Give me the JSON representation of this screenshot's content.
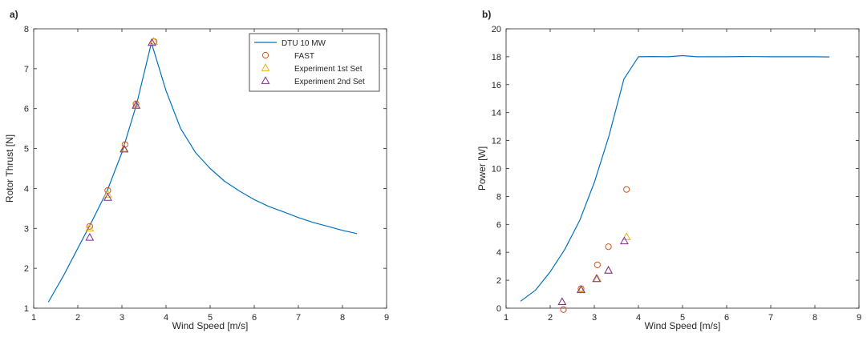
{
  "chart_data": [
    {
      "type": "line",
      "panel_label": "a)",
      "xlabel": "Wind Speed [m/s]",
      "ylabel": "Rotor Thrust [N]",
      "xlim": [
        1,
        9
      ],
      "ylim": [
        1,
        8
      ],
      "xticks": [
        1,
        2,
        3,
        4,
        5,
        6,
        7,
        8,
        9
      ],
      "yticks": [
        1,
        2,
        3,
        4,
        5,
        6,
        7,
        8
      ],
      "grid": false,
      "legend": "top-right",
      "series": [
        {
          "name": "DTU 10 MW",
          "kind": "line",
          "color": "#0072bd",
          "x": [
            1.33,
            1.67,
            2.0,
            2.33,
            2.67,
            3.0,
            3.33,
            3.67,
            4.0,
            4.33,
            4.67,
            5.0,
            5.33,
            5.67,
            6.0,
            6.33,
            6.67,
            7.0,
            7.33,
            7.67,
            8.0,
            8.33
          ],
          "y": [
            1.15,
            1.8,
            2.5,
            3.2,
            3.95,
            4.9,
            6.1,
            7.65,
            6.45,
            5.5,
            4.9,
            4.5,
            4.18,
            3.93,
            3.72,
            3.55,
            3.41,
            3.27,
            3.15,
            3.05,
            2.95,
            2.87
          ]
        },
        {
          "name": "FAST",
          "kind": "marker",
          "marker": "circle",
          "color": "#d95319",
          "x": [
            2.27,
            2.68,
            3.07,
            3.32,
            3.73
          ],
          "y": [
            3.05,
            3.95,
            5.1,
            6.12,
            7.68
          ]
        },
        {
          "name": "Experiment 1st Set",
          "kind": "marker",
          "marker": "triangle",
          "color": "#edb120",
          "x": [
            2.27,
            2.68,
            3.05,
            3.33,
            3.72
          ],
          "y": [
            3.0,
            3.85,
            5.0,
            6.07,
            7.68
          ]
        },
        {
          "name": "Experiment 2nd Set",
          "kind": "marker",
          "marker": "triangle",
          "color": "#7e2f8e",
          "x": [
            2.27,
            2.68,
            3.05,
            3.32,
            3.68
          ],
          "y": [
            2.77,
            3.77,
            4.98,
            6.08,
            7.65
          ]
        }
      ]
    },
    {
      "type": "line",
      "panel_label": "b)",
      "xlabel": "Wind Speed [m/s]",
      "ylabel": "Power [W]",
      "xlim": [
        1,
        9
      ],
      "ylim": [
        0,
        20
      ],
      "xticks": [
        1,
        2,
        3,
        4,
        5,
        6,
        7,
        8,
        9
      ],
      "yticks": [
        0,
        2,
        4,
        6,
        8,
        10,
        12,
        14,
        16,
        18,
        20
      ],
      "grid": false,
      "series": [
        {
          "name": "DTU 10 MW",
          "kind": "line",
          "color": "#0072bd",
          "x": [
            1.33,
            1.67,
            2.0,
            2.33,
            2.67,
            3.0,
            3.33,
            3.67,
            4.0,
            4.33,
            4.67,
            5.0,
            5.33,
            5.67,
            6.0,
            6.33,
            6.67,
            7.0,
            7.33,
            7.67,
            8.0,
            8.33
          ],
          "y": [
            0.5,
            1.3,
            2.6,
            4.2,
            6.3,
            9.0,
            12.3,
            16.4,
            18.0,
            18.02,
            18.0,
            18.08,
            18.0,
            18.0,
            18.0,
            18.02,
            18.01,
            18.0,
            18.0,
            18.0,
            18.0,
            17.99
          ]
        },
        {
          "name": "FAST",
          "kind": "marker",
          "marker": "circle",
          "color": "#d95319",
          "x": [
            2.3,
            2.7,
            3.07,
            3.32,
            3.73
          ],
          "y": [
            -0.1,
            1.4,
            3.1,
            4.4,
            8.5
          ]
        },
        {
          "name": "Experiment 1st Set",
          "kind": "marker",
          "marker": "triangle",
          "color": "#edb120",
          "x": [
            2.27,
            2.7,
            3.07,
            3.32,
            3.73
          ],
          "y": [
            0.45,
            1.35,
            2.1,
            2.7,
            5.1
          ]
        },
        {
          "name": "Experiment 2nd Set",
          "kind": "marker",
          "marker": "triangle",
          "color": "#7e2f8e",
          "x": [
            2.27,
            2.7,
            3.05,
            3.32,
            3.68
          ],
          "y": [
            0.45,
            1.3,
            2.1,
            2.7,
            4.8
          ]
        }
      ]
    }
  ]
}
